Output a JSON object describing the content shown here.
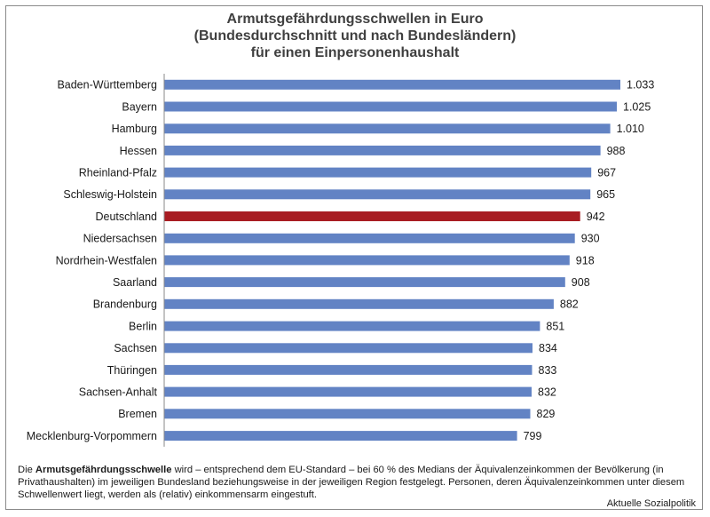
{
  "chart_data": {
    "type": "bar",
    "orientation": "horizontal",
    "title": [
      "Armutsgefährdungsschwellen in Euro",
      "(Bundesdurchschnitt und nach Bundesländern)",
      "für einen Einpersonenhaushalt"
    ],
    "categories": [
      "Baden-Württemberg",
      "Bayern",
      "Hamburg",
      "Hessen",
      "Rheinland-Pfalz",
      "Schleswig-Holstein",
      "Deutschland",
      "Niedersachsen",
      "Nordrhein-Westfalen",
      "Saarland",
      "Brandenburg",
      "Berlin",
      "Sachsen",
      "Thüringen",
      "Sachsen-Anhalt",
      "Bremen",
      "Mecklenburg-Vorpommern"
    ],
    "values": [
      1033,
      1025,
      1010,
      988,
      967,
      965,
      942,
      930,
      918,
      908,
      882,
      851,
      834,
      833,
      832,
      829,
      799
    ],
    "value_labels": [
      "1.033",
      "1.025",
      "1.010",
      "988",
      "967",
      "965",
      "942",
      "930",
      "918",
      "908",
      "882",
      "851",
      "834",
      "833",
      "832",
      "829",
      "799"
    ],
    "highlight_category": "Deutschland",
    "xlim": [
      0,
      1033
    ],
    "grid": false,
    "colors": {
      "bar": "#6283c4",
      "highlight": "#a81c22",
      "axis": "#8a8a8a"
    }
  },
  "footnote": {
    "prefix": "Die ",
    "bold": "Armutsgefährdungsschwelle",
    "rest": " wird – entsprechend dem EU-Standard – bei 60 % des Medians der Äquivalenzeinkommen der Bevölkerung (in Privathaushalten) im jeweiligen Bundesland beziehungsweise in der jeweiligen Region festgelegt. Personen, deren Äquivalenzeinkommen unter diesem Schwellenwert liegt, werden als (relativ) einkommensarm eingestuft."
  },
  "source": "Aktuelle Sozialpolitik"
}
